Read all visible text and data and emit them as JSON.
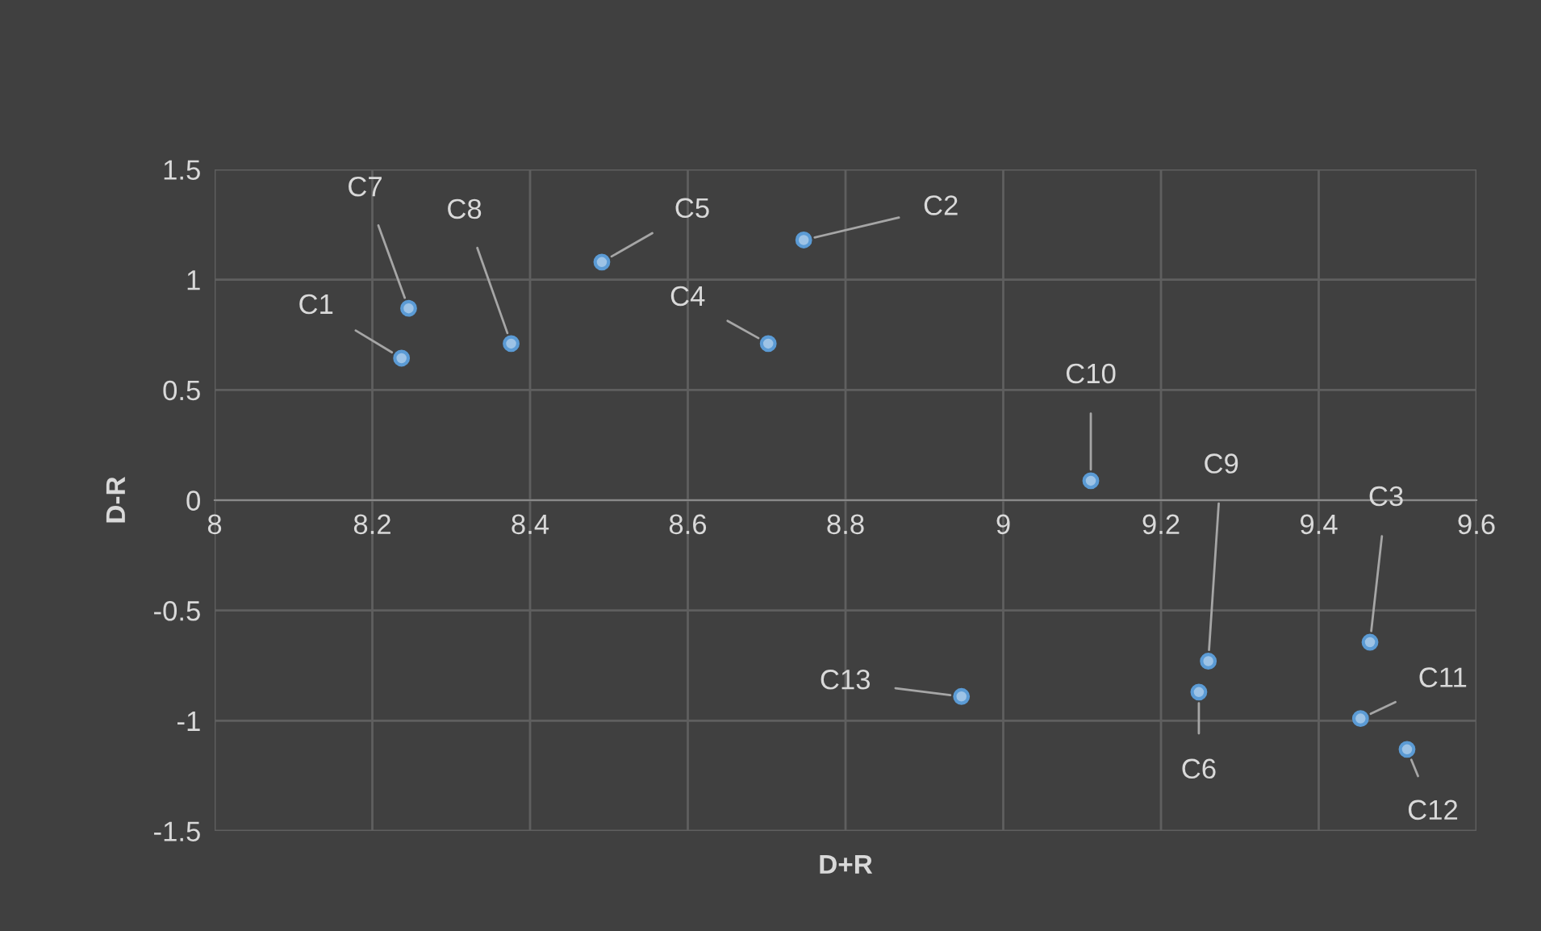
{
  "chart_data": {
    "type": "scatter",
    "xlabel": "D+R",
    "ylabel": "D-R",
    "x": [
      8.237,
      8.747,
      9.465,
      8.702,
      8.491,
      9.248,
      8.246,
      8.376,
      9.26,
      9.111,
      9.453,
      9.512,
      8.947
    ],
    "values": [
      0.644,
      1.18,
      -0.644,
      0.71,
      1.08,
      -0.87,
      0.87,
      0.71,
      -0.73,
      0.088,
      -0.99,
      -1.13,
      -0.89
    ],
    "value_labels": [
      "C1",
      "C2",
      "C3",
      "C4",
      "C5",
      "C6",
      "C7",
      "C8",
      "C9",
      "C10",
      "C11",
      "C12",
      "C13"
    ],
    "color": "#9dc3e6",
    "marker": "circle",
    "xlim": [
      8,
      9.6
    ],
    "xticks": [
      8,
      8.2,
      8.4,
      8.6,
      8.8,
      9,
      9.2,
      9.4,
      9.6
    ],
    "ylim": [
      -1.5,
      1.5
    ],
    "yticks": [
      -1.5,
      -1,
      -0.5,
      0,
      0.5,
      1,
      1.5
    ],
    "grid": true
  }
}
